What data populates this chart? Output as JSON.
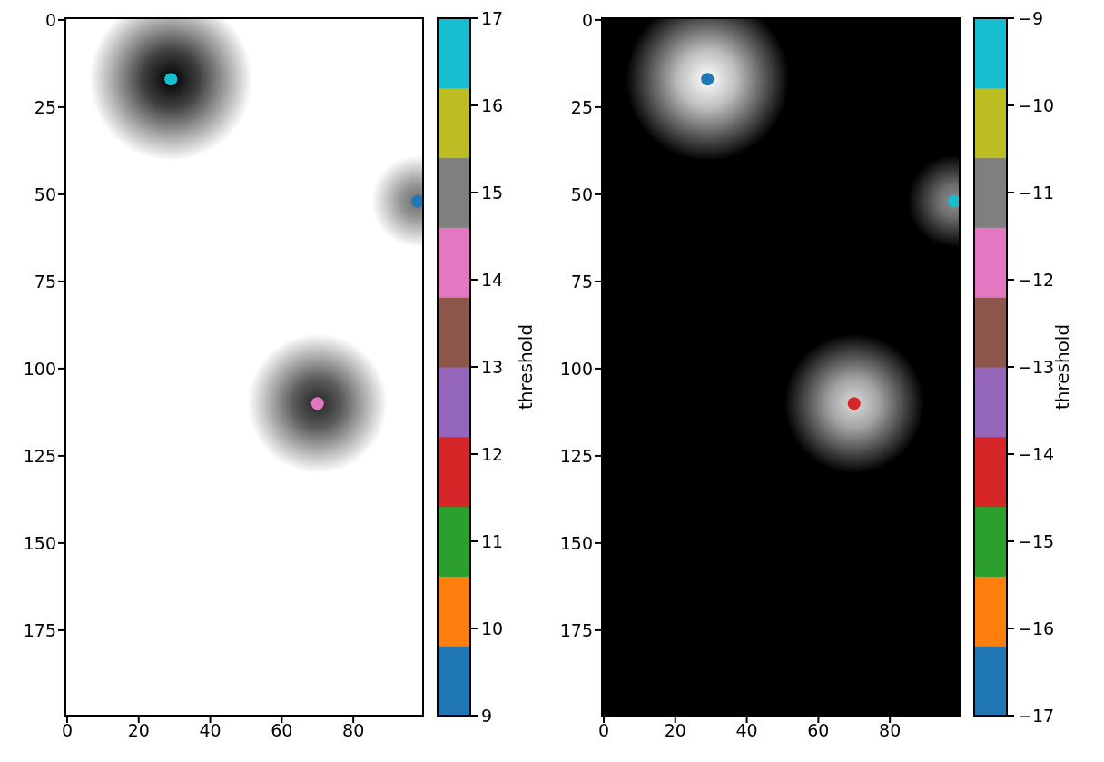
{
  "chart_data": [
    {
      "type": "scatter",
      "x": [
        29,
        98,
        70
      ],
      "values": [
        17,
        52,
        110
      ],
      "cvalues": [
        16.6,
        9.4,
        14.2
      ],
      "marker": "circle",
      "xlim": [
        -0.5,
        99.5
      ],
      "ylim": [
        199.5,
        -0.5
      ],
      "xticks": [
        0,
        20,
        40,
        60,
        80
      ],
      "yticks": [
        0,
        25,
        50,
        75,
        100,
        125,
        150,
        175
      ],
      "clim": [
        9,
        17
      ],
      "cticks": [
        9,
        10,
        11,
        12,
        13,
        14,
        15,
        16,
        17
      ],
      "clabel": "threshold"
    },
    {
      "type": "scatter",
      "x": [
        29,
        98,
        70
      ],
      "values": [
        17,
        52,
        110
      ],
      "cvalues": [
        -16.6,
        -9.4,
        -14.2
      ],
      "marker": "circle",
      "xlim": [
        -0.5,
        99.5
      ],
      "ylim": [
        199.5,
        -0.5
      ],
      "xticks": [
        0,
        20,
        40,
        60,
        80
      ],
      "yticks": [
        0,
        25,
        50,
        75,
        100,
        125,
        150,
        175
      ],
      "clim": [
        -17,
        -9
      ],
      "cticks": [
        -17,
        -16,
        -15,
        -14,
        -13,
        -12,
        -11,
        -10,
        -9
      ],
      "clabel": "threshold"
    }
  ]
}
